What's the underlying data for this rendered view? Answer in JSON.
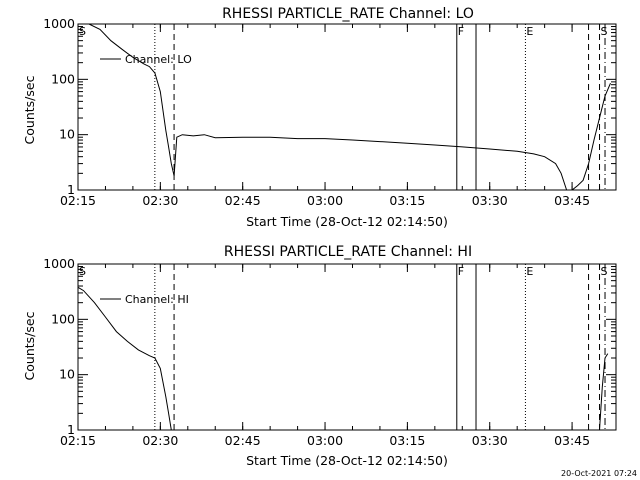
{
  "chart_data": [
    {
      "type": "line",
      "title": "RHESSI PARTICLE_RATE Channel: LO",
      "xlabel": "Start Time (28-Oct-12 02:14:50)",
      "ylabel": "Counts/sec",
      "xlim": [
        "02:15",
        "03:53"
      ],
      "ylim": [
        1,
        1000
      ],
      "yscale": "log",
      "x_ticks": [
        "02:15",
        "02:30",
        "02:45",
        "03:00",
        "03:15",
        "03:30",
        "03:45"
      ],
      "y_ticks": [
        "1",
        "10",
        "100",
        "1000"
      ],
      "legend_position": "top-left",
      "series": [
        {
          "name": "Channel: LO",
          "points": [
            [
              "02:15",
              1000
            ],
            [
              "02:17",
              1000
            ],
            [
              "02:19",
              800
            ],
            [
              "02:21",
              500
            ],
            [
              "02:23",
              350
            ],
            [
              "02:25",
              250
            ],
            [
              "02:27",
              190
            ],
            [
              "02:28",
              170
            ],
            [
              "02:29",
              130
            ],
            [
              "02:30",
              60
            ],
            [
              "02:31",
              12
            ],
            [
              "02:31:30",
              6
            ],
            [
              "02:32",
              3
            ],
            [
              "02:32:30",
              1.8
            ],
            [
              "02:33",
              9
            ],
            [
              "02:34",
              10
            ],
            [
              "02:36",
              9.5
            ],
            [
              "02:38",
              10
            ],
            [
              "02:40",
              8.8
            ],
            [
              "02:45",
              9
            ],
            [
              "02:50",
              9
            ],
            [
              "02:55",
              8.5
            ],
            [
              "03:00",
              8.5
            ],
            [
              "03:05",
              8
            ],
            [
              "03:10",
              7.5
            ],
            [
              "03:15",
              7
            ],
            [
              "03:20",
              6.5
            ],
            [
              "03:25",
              6
            ],
            [
              "03:30",
              5.5
            ],
            [
              "03:35",
              5
            ],
            [
              "03:38",
              4.5
            ],
            [
              "03:40",
              4
            ],
            [
              "03:42",
              3
            ],
            [
              "03:43",
              2
            ],
            [
              "03:44",
              1
            ],
            [
              "03:45",
              1
            ],
            [
              "03:46",
              1.2
            ],
            [
              "03:47",
              1.5
            ],
            [
              "03:48",
              3
            ],
            [
              "03:49",
              8
            ],
            [
              "03:50",
              20
            ],
            [
              "03:51",
              50
            ],
            [
              "03:52",
              85
            ]
          ]
        }
      ],
      "markers": [
        {
          "label": "S",
          "time": "02:15",
          "style": "solid"
        },
        {
          "label": "",
          "time": "02:29",
          "style": "dotted"
        },
        {
          "label": "",
          "time": "02:32:30",
          "style": "dashed"
        },
        {
          "label": "F",
          "time": "03:24",
          "style": "solid"
        },
        {
          "label": "",
          "time": "03:27:30",
          "style": "solid"
        },
        {
          "label": "E",
          "time": "03:36:30",
          "style": "dotted"
        },
        {
          "label": "",
          "time": "03:48",
          "style": "dashed"
        },
        {
          "label": "S",
          "time": "03:50",
          "style": "dashed"
        },
        {
          "label": "",
          "time": "03:51",
          "style": "dashdot"
        }
      ]
    },
    {
      "type": "line",
      "title": "RHESSI PARTICLE_RATE Channel: HI",
      "xlabel": "Start Time (28-Oct-12 02:14:50)",
      "ylabel": "Counts/sec",
      "xlim": [
        "02:15",
        "03:53"
      ],
      "ylim": [
        1,
        1000
      ],
      "yscale": "log",
      "x_ticks": [
        "02:15",
        "02:30",
        "02:45",
        "03:00",
        "03:15",
        "03:30",
        "03:45"
      ],
      "y_ticks": [
        "1",
        "10",
        "100",
        "1000"
      ],
      "legend_position": "top-left",
      "series": [
        {
          "name": "Channel: HI",
          "points": [
            [
              "02:15",
              380
            ],
            [
              "02:16",
              330
            ],
            [
              "02:18",
              200
            ],
            [
              "02:20",
              110
            ],
            [
              "02:22",
              60
            ],
            [
              "02:24",
              40
            ],
            [
              "02:26",
              28
            ],
            [
              "02:28",
              22
            ],
            [
              "02:29",
              20
            ],
            [
              "02:30",
              13
            ],
            [
              "02:31",
              4
            ],
            [
              "02:31:30",
              2
            ],
            [
              "02:32",
              1
            ],
            [
              "03:50",
              1
            ],
            [
              "03:50:30",
              6
            ],
            [
              "03:51",
              20
            ],
            [
              "03:51:30",
              24
            ]
          ]
        }
      ],
      "markers": [
        {
          "label": "S",
          "time": "02:15",
          "style": "solid"
        },
        {
          "label": "",
          "time": "02:29",
          "style": "dotted"
        },
        {
          "label": "",
          "time": "02:32:30",
          "style": "dashed"
        },
        {
          "label": "F",
          "time": "03:24",
          "style": "solid"
        },
        {
          "label": "",
          "time": "03:27:30",
          "style": "solid"
        },
        {
          "label": "E",
          "time": "03:36:30",
          "style": "dotted"
        },
        {
          "label": "",
          "time": "03:48",
          "style": "dashed"
        },
        {
          "label": "S",
          "time": "03:50",
          "style": "dashed"
        },
        {
          "label": "",
          "time": "03:51",
          "style": "dashdot"
        }
      ]
    }
  ],
  "footer": {
    "timestamp": "20-Oct-2021 07:24"
  }
}
